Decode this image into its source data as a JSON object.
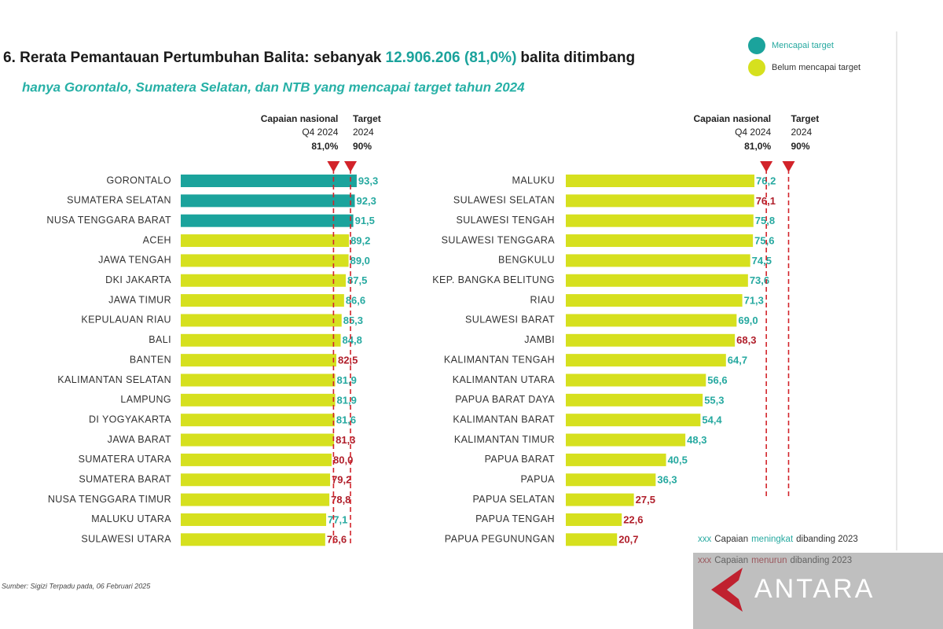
{
  "header": {
    "title_parts": [
      {
        "text": "6. Rerata Pemantauan Pertumbuhan Balita: sebanyak",
        "color": "#1a1a1a"
      },
      {
        "text": "12.906.206 (81,0%)",
        "color": "#1ba39c"
      },
      {
        "text": "balita ditimbang",
        "color": "#1a1a1a"
      }
    ],
    "subtitle": "hanya Gorontalo, Sumatera Selatan, dan NTB yang mencapai target tahun 2024",
    "legend": [
      {
        "name": "Mencapai target",
        "color": "#1ba39c"
      },
      {
        "name": "Belum mencapai target",
        "color": "#d6e01e"
      }
    ],
    "notes": [
      {
        "parts": [
          {
            "text": "xxx",
            "color": "#26a9a0"
          },
          {
            "text": "Capaian",
            "color": "#333333"
          },
          {
            "text": "meningkat",
            "color": "#26a9a0"
          },
          {
            "text": "dibanding 2023",
            "color": "#333333"
          }
        ]
      },
      {
        "parts": [
          {
            "text": "xxx",
            "color": "#b01e2a"
          },
          {
            "text": "Capaian",
            "color": "#333333"
          },
          {
            "text": "menurun",
            "color": "#b01e2a"
          },
          {
            "text": "dibanding 2023",
            "color": "#333333"
          }
        ]
      }
    ],
    "source": "Sumber: Sigizi Terpadu pada, 06 Februari 2025",
    "watermark": "ANTARA"
  },
  "chart_data": [
    {
      "type": "bar",
      "orientation": "horizontal",
      "categories": [
        "GORONTALO",
        "SUMATERA SELATAN",
        "NUSA TENGGARA BARAT",
        "ACEH",
        "JAWA TENGAH",
        "DKI JAKARTA",
        "JAWA TIMUR",
        "KEPULAUAN RIAU",
        "BALI",
        "BANTEN",
        "KALIMANTAN SELATAN",
        "LAMPUNG",
        "DI YOGYAKARTA",
        "JAWA BARAT",
        "SUMATERA UTARA",
        "SUMATERA BARAT",
        "NUSA TENGGARA TIMUR",
        "MALUKU UTARA",
        "SULAWESI UTARA"
      ],
      "values": [
        93.3,
        92.3,
        91.5,
        89.2,
        89.0,
        87.5,
        86.6,
        85.3,
        84.8,
        82.5,
        81.9,
        81.9,
        81.6,
        81.3,
        80.0,
        79.2,
        78.8,
        77.1,
        76.6
      ],
      "value_labels": [
        "93,3",
        "92,3",
        "91,5",
        "89,2",
        "89,0",
        "87,5",
        "86,6",
        "85,3",
        "84,8",
        "82,5",
        "81,9",
        "81,9",
        "81,6",
        "81,3",
        "80,0",
        "79,2",
        "78,8",
        "77,1",
        "76,6"
      ],
      "bar_colors": [
        "#1ba39c",
        "#1ba39c",
        "#1ba39c",
        "#d6e01e",
        "#d6e01e",
        "#d6e01e",
        "#d6e01e",
        "#d6e01e",
        "#d6e01e",
        "#d6e01e",
        "#d6e01e",
        "#d6e01e",
        "#d6e01e",
        "#d6e01e",
        "#d6e01e",
        "#d6e01e",
        "#d6e01e",
        "#d6e01e",
        "#d6e01e"
      ],
      "label_colors": [
        "#26a9a0",
        "#26a9a0",
        "#26a9a0",
        "#26a9a0",
        "#26a9a0",
        "#26a9a0",
        "#26a9a0",
        "#26a9a0",
        "#26a9a0",
        "#b01e2a",
        "#26a9a0",
        "#26a9a0",
        "#26a9a0",
        "#b01e2a",
        "#b01e2a",
        "#b01e2a",
        "#b01e2a",
        "#26a9a0",
        "#b01e2a"
      ],
      "xlim": [
        0,
        100
      ],
      "reference_lines": [
        {
          "label_lines": [
            "Capaian nasional",
            "Q4 2024"
          ],
          "value": 81.0,
          "value_label": "81,0%"
        },
        {
          "label_lines": [
            "Target",
            "2024"
          ],
          "value": 90,
          "value_label": "90%"
        }
      ]
    },
    {
      "type": "bar",
      "orientation": "horizontal",
      "categories": [
        "MALUKU",
        "SULAWESI SELATAN",
        "SULAWESI TENGAH",
        "SULAWESI TENGGARA",
        "BENGKULU",
        "KEP. BANGKA BELITUNG",
        "RIAU",
        "SULAWESI BARAT",
        "JAMBI",
        "KALIMANTAN TENGAH",
        "KALIMANTAN UTARA",
        "PAPUA BARAT DAYA",
        "KALIMANTAN BARAT",
        "KALIMANTAN TIMUR",
        "PAPUA BARAT",
        "PAPUA",
        "PAPUA SELATAN",
        "PAPUA TENGAH",
        "PAPUA PEGUNUNGAN"
      ],
      "values": [
        76.2,
        76.1,
        75.8,
        75.6,
        74.5,
        73.6,
        71.3,
        69.0,
        68.3,
        64.7,
        56.6,
        55.3,
        54.4,
        48.3,
        40.5,
        36.3,
        27.5,
        22.6,
        20.7
      ],
      "value_labels": [
        "76,2",
        "76,1",
        "75,8",
        "75,6",
        "74,5",
        "73,6",
        "71,3",
        "69,0",
        "68,3",
        "64,7",
        "56,6",
        "55,3",
        "54,4",
        "48,3",
        "40,5",
        "36,3",
        "27,5",
        "22,6",
        "20,7"
      ],
      "bar_colors": [
        "#d6e01e",
        "#d6e01e",
        "#d6e01e",
        "#d6e01e",
        "#d6e01e",
        "#d6e01e",
        "#d6e01e",
        "#d6e01e",
        "#d6e01e",
        "#d6e01e",
        "#d6e01e",
        "#d6e01e",
        "#d6e01e",
        "#d6e01e",
        "#d6e01e",
        "#d6e01e",
        "#d6e01e",
        "#d6e01e",
        "#d6e01e"
      ],
      "label_colors": [
        "#26a9a0",
        "#b01e2a",
        "#26a9a0",
        "#26a9a0",
        "#26a9a0",
        "#26a9a0",
        "#26a9a0",
        "#26a9a0",
        "#b01e2a",
        "#26a9a0",
        "#26a9a0",
        "#26a9a0",
        "#26a9a0",
        "#26a9a0",
        "#26a9a0",
        "#26a9a0",
        "#b01e2a",
        "#b01e2a",
        "#b01e2a"
      ],
      "xlim": [
        0,
        100
      ],
      "reference_lines": [
        {
          "label_lines": [
            "Capaian nasional",
            "Q4 2024"
          ],
          "value": 81.0,
          "value_label": "81,0%"
        },
        {
          "label_lines": [
            "Target",
            "2024"
          ],
          "value": 90,
          "value_label": "90%"
        }
      ]
    }
  ]
}
